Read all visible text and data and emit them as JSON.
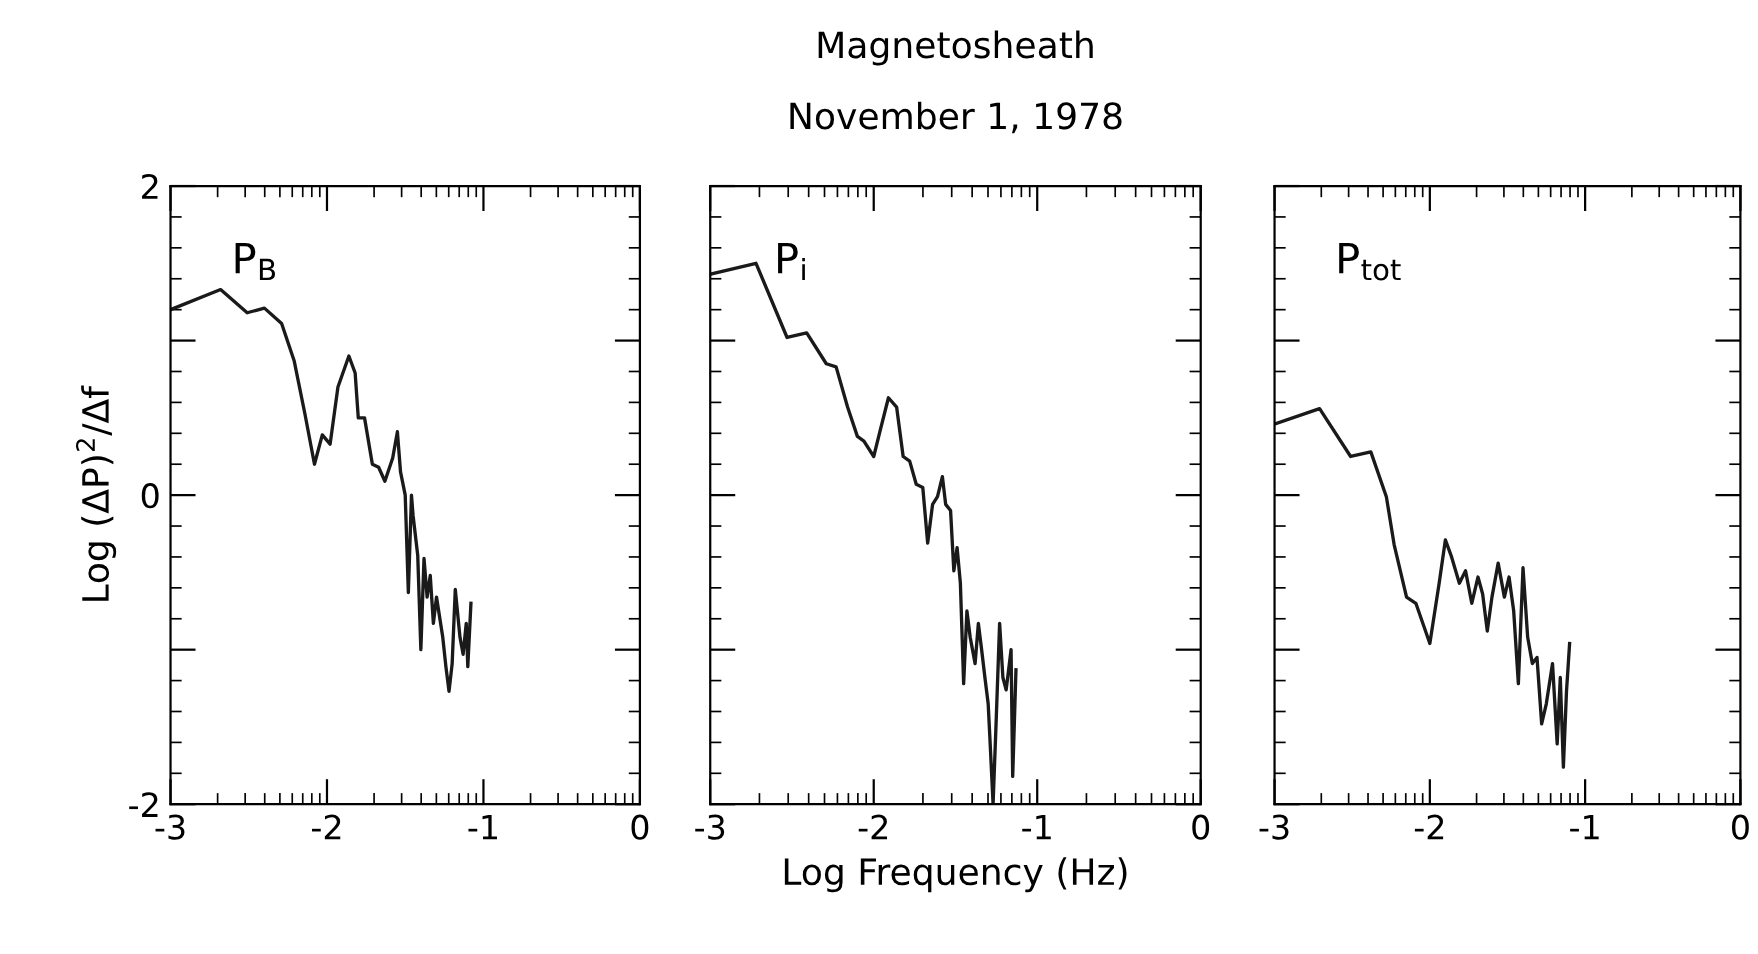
{
  "chart_data": [
    {
      "type": "line",
      "ylabel": "Log (ΔP)$^{2}$/Δf",
      "annotations": [
        "P$_{B}$"
      ],
      "xlim": [
        -3,
        0
      ],
      "ylim": [
        -2,
        2
      ],
      "xticks": [
        -3,
        {
          "value": -2.699,
          "label": null
        },
        {
          "value": -2.523,
          "label": null
        },
        {
          "value": -2.398,
          "label": null
        },
        {
          "value": -2.301,
          "label": null
        },
        {
          "value": -2.222,
          "label": null
        },
        {
          "value": -2.155,
          "label": null
        },
        {
          "value": -2.097,
          "label": null
        },
        {
          "value": -2.046,
          "label": null
        },
        -2,
        {
          "value": -1.699,
          "label": null
        },
        {
          "value": -1.523,
          "label": null
        },
        {
          "value": -1.398,
          "label": null
        },
        {
          "value": -1.301,
          "label": null
        },
        {
          "value": -1.222,
          "label": null
        },
        {
          "value": -1.155,
          "label": null
        },
        {
          "value": -1.097,
          "label": null
        },
        {
          "value": -1.046,
          "label": null
        },
        -1,
        {
          "value": -0.699,
          "label": null
        },
        {
          "value": -0.523,
          "label": null
        },
        {
          "value": -0.398,
          "label": null
        },
        {
          "value": -0.301,
          "label": null
        },
        {
          "value": -0.222,
          "label": null
        },
        {
          "value": -0.155,
          "label": null
        },
        {
          "value": -0.097,
          "label": null
        },
        {
          "value": -0.046,
          "label": null
        },
        0
      ],
      "yticks": [
        -2,
        {
          "value": -1.8,
          "label": null
        },
        {
          "value": -1.6,
          "label": null
        },
        {
          "value": -1.4,
          "label": null
        },
        {
          "value": -1.2,
          "label": null
        },
        {
          "value": -1,
          "label": null
        },
        {
          "value": -0.8,
          "label": null
        },
        {
          "value": -0.6,
          "label": null
        },
        {
          "value": -0.4,
          "label": null
        },
        {
          "value": -0.2,
          "label": null
        },
        0,
        {
          "value": 0.2,
          "label": null
        },
        {
          "value": 0.4,
          "label": null
        },
        {
          "value": 0.6,
          "label": null
        },
        {
          "value": 0.8,
          "label": null
        },
        {
          "value": 1,
          "label": null
        },
        {
          "value": 1.2,
          "label": null
        },
        {
          "value": 1.4,
          "label": null
        },
        {
          "value": 1.6,
          "label": null
        },
        {
          "value": 1.8,
          "label": null
        },
        2
      ],
      "marker": "none",
      "line_style": "solid",
      "series": [
        {
          "color": "#1a1a1a",
          "x": [
            -3,
            -2.68,
            -2.51,
            -2.4,
            -2.29,
            -2.21,
            -2.14,
            -2.08,
            -2.03,
            -1.98,
            -1.93,
            -1.86,
            -1.82,
            -1.8,
            -1.76,
            -1.71,
            -1.67,
            -1.63,
            -1.58,
            -1.55,
            -1.53,
            -1.5,
            -1.48,
            -1.46,
            -1.45,
            -1.42,
            -1.4,
            -1.38,
            -1.36,
            -1.34,
            -1.32,
            -1.3,
            -1.26,
            -1.24,
            -1.22,
            -1.2,
            -1.18,
            -1.15,
            -1.13,
            -1.11,
            -1.1,
            -1.08
          ],
          "values": [
            1.2,
            1.33,
            1.18,
            1.21,
            1.11,
            0.87,
            0.52,
            0.2,
            0.39,
            0.33,
            0.7,
            0.9,
            0.79,
            0.5,
            0.5,
            0.2,
            0.18,
            0.09,
            0.24,
            0.41,
            0.15,
            0.0,
            -0.63,
            0.0,
            -0.13,
            -0.39,
            -1.0,
            -0.41,
            -0.66,
            -0.52,
            -0.83,
            -0.66,
            -0.92,
            -1.11,
            -1.27,
            -1.09,
            -0.61,
            -0.92,
            -1.03,
            -0.83,
            -1.11,
            -0.7
          ]
        }
      ]
    },
    {
      "type": "line",
      "title": "Magnetosheath",
      "subtitle": "November 1, 1978",
      "xlabel": "Log Frequency (Hz)",
      "annotations": [
        "P$_{i}$"
      ],
      "tick_labels": "x",
      "xlim": [
        -3,
        0
      ],
      "ylim": [
        -2,
        2
      ],
      "xticks": [
        -3,
        {
          "value": -2.699,
          "label": null
        },
        {
          "value": -2.523,
          "label": null
        },
        {
          "value": -2.398,
          "label": null
        },
        {
          "value": -2.301,
          "label": null
        },
        {
          "value": -2.222,
          "label": null
        },
        {
          "value": -2.155,
          "label": null
        },
        {
          "value": -2.097,
          "label": null
        },
        {
          "value": -2.046,
          "label": null
        },
        -2,
        {
          "value": -1.699,
          "label": null
        },
        {
          "value": -1.523,
          "label": null
        },
        {
          "value": -1.398,
          "label": null
        },
        {
          "value": -1.301,
          "label": null
        },
        {
          "value": -1.222,
          "label": null
        },
        {
          "value": -1.155,
          "label": null
        },
        {
          "value": -1.097,
          "label": null
        },
        {
          "value": -1.046,
          "label": null
        },
        -1,
        {
          "value": -0.699,
          "label": null
        },
        {
          "value": -0.523,
          "label": null
        },
        {
          "value": -0.398,
          "label": null
        },
        {
          "value": -0.301,
          "label": null
        },
        {
          "value": -0.222,
          "label": null
        },
        {
          "value": -0.155,
          "label": null
        },
        {
          "value": -0.097,
          "label": null
        },
        {
          "value": -0.046,
          "label": null
        },
        0
      ],
      "yticks": [
        -2,
        {
          "value": -1.8,
          "label": null
        },
        {
          "value": -1.6,
          "label": null
        },
        {
          "value": -1.4,
          "label": null
        },
        {
          "value": -1.2,
          "label": null
        },
        {
          "value": -1,
          "label": null
        },
        {
          "value": -0.8,
          "label": null
        },
        {
          "value": -0.6,
          "label": null
        },
        {
          "value": -0.4,
          "label": null
        },
        {
          "value": -0.2,
          "label": null
        },
        0,
        {
          "value": 0.2,
          "label": null
        },
        {
          "value": 0.4,
          "label": null
        },
        {
          "value": 0.6,
          "label": null
        },
        {
          "value": 0.8,
          "label": null
        },
        {
          "value": 1,
          "label": null
        },
        {
          "value": 1.2,
          "label": null
        },
        {
          "value": 1.4,
          "label": null
        },
        {
          "value": 1.6,
          "label": null
        },
        {
          "value": 1.8,
          "label": null
        },
        2
      ],
      "marker": "none",
      "line_style": "solid",
      "series": [
        {
          "color": "#1a1a1a",
          "x": [
            -3,
            -2.72,
            -2.53,
            -2.41,
            -2.29,
            -2.23,
            -2.16,
            -2.1,
            -2.06,
            -2.0,
            -1.96,
            -1.91,
            -1.86,
            -1.82,
            -1.78,
            -1.74,
            -1.7,
            -1.67,
            -1.64,
            -1.61,
            -1.58,
            -1.56,
            -1.53,
            -1.51,
            -1.49,
            -1.47,
            -1.45,
            -1.43,
            -1.41,
            -1.38,
            -1.36,
            -1.34,
            -1.32,
            -1.3,
            -1.29,
            -1.27,
            -1.25,
            -1.23,
            -1.21,
            -1.19,
            -1.16,
            -1.15,
            -1.13
          ],
          "values": [
            1.43,
            1.5,
            1.02,
            1.05,
            0.85,
            0.83,
            0.57,
            0.38,
            0.35,
            0.25,
            0.42,
            0.63,
            0.57,
            0.25,
            0.22,
            0.07,
            0.05,
            -0.31,
            -0.06,
            -0.01,
            0.12,
            -0.06,
            -0.1,
            -0.49,
            -0.34,
            -0.57,
            -1.22,
            -0.75,
            -0.92,
            -1.09,
            -0.83,
            -1.0,
            -1.18,
            -1.35,
            -1.56,
            -2.0,
            -1.43,
            -0.83,
            -1.18,
            -1.26,
            -1.0,
            -1.82,
            -1.13
          ]
        }
      ]
    },
    {
      "type": "line",
      "annotations": [
        "P$_{tot}$"
      ],
      "tick_labels": "x",
      "xlim": [
        -3,
        0
      ],
      "ylim": [
        -2,
        2
      ],
      "xticks": [
        -3,
        {
          "value": -2.699,
          "label": null
        },
        {
          "value": -2.523,
          "label": null
        },
        {
          "value": -2.398,
          "label": null
        },
        {
          "value": -2.301,
          "label": null
        },
        {
          "value": -2.222,
          "label": null
        },
        {
          "value": -2.155,
          "label": null
        },
        {
          "value": -2.097,
          "label": null
        },
        {
          "value": -2.046,
          "label": null
        },
        -2,
        {
          "value": -1.699,
          "label": null
        },
        {
          "value": -1.523,
          "label": null
        },
        {
          "value": -1.398,
          "label": null
        },
        {
          "value": -1.301,
          "label": null
        },
        {
          "value": -1.222,
          "label": null
        },
        {
          "value": -1.155,
          "label": null
        },
        {
          "value": -1.097,
          "label": null
        },
        {
          "value": -1.046,
          "label": null
        },
        -1,
        {
          "value": -0.699,
          "label": null
        },
        {
          "value": -0.523,
          "label": null
        },
        {
          "value": -0.398,
          "label": null
        },
        {
          "value": -0.301,
          "label": null
        },
        {
          "value": -0.222,
          "label": null
        },
        {
          "value": -0.155,
          "label": null
        },
        {
          "value": -0.097,
          "label": null
        },
        {
          "value": -0.046,
          "label": null
        },
        0
      ],
      "yticks": [
        -2,
        {
          "value": -1.8,
          "label": null
        },
        {
          "value": -1.6,
          "label": null
        },
        {
          "value": -1.4,
          "label": null
        },
        {
          "value": -1.2,
          "label": null
        },
        {
          "value": -1,
          "label": null
        },
        {
          "value": -0.8,
          "label": null
        },
        {
          "value": -0.6,
          "label": null
        },
        {
          "value": -0.4,
          "label": null
        },
        {
          "value": -0.2,
          "label": null
        },
        0,
        {
          "value": 0.2,
          "label": null
        },
        {
          "value": 0.4,
          "label": null
        },
        {
          "value": 0.6,
          "label": null
        },
        {
          "value": 0.8,
          "label": null
        },
        {
          "value": 1,
          "label": null
        },
        {
          "value": 1.2,
          "label": null
        },
        {
          "value": 1.4,
          "label": null
        },
        {
          "value": 1.6,
          "label": null
        },
        {
          "value": 1.8,
          "label": null
        },
        2
      ],
      "marker": "none",
      "line_style": "solid",
      "series": [
        {
          "color": "#1a1a1a",
          "x": [
            -3,
            -2.71,
            -2.51,
            -2.38,
            -2.28,
            -2.23,
            -2.15,
            -2.09,
            -2.0,
            -1.94,
            -1.9,
            -1.86,
            -1.81,
            -1.77,
            -1.73,
            -1.69,
            -1.66,
            -1.63,
            -1.6,
            -1.56,
            -1.52,
            -1.49,
            -1.46,
            -1.43,
            -1.4,
            -1.37,
            -1.34,
            -1.31,
            -1.28,
            -1.25,
            -1.21,
            -1.18,
            -1.16,
            -1.14,
            -1.12,
            -1.1
          ],
          "values": [
            0.46,
            0.56,
            0.25,
            0.28,
            -0.01,
            -0.32,
            -0.66,
            -0.7,
            -0.96,
            -0.57,
            -0.29,
            -0.4,
            -0.57,
            -0.49,
            -0.7,
            -0.53,
            -0.64,
            -0.88,
            -0.66,
            -0.44,
            -0.66,
            -0.53,
            -0.75,
            -1.22,
            -0.47,
            -0.92,
            -1.09,
            -1.05,
            -1.48,
            -1.35,
            -1.09,
            -1.61,
            -1.18,
            -1.76,
            -1.27,
            -0.96
          ]
        }
      ]
    }
  ]
}
